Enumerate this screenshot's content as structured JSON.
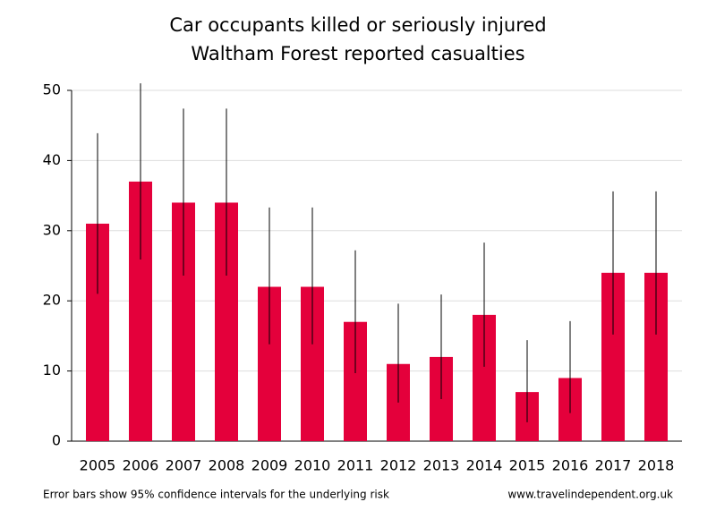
{
  "chart_data": {
    "type": "bar",
    "title": "Car occupants killed or seriously injured",
    "subtitle": "Waltham Forest reported casualties",
    "categories": [
      "2005",
      "2006",
      "2007",
      "2008",
      "2009",
      "2010",
      "2011",
      "2012",
      "2013",
      "2014",
      "2015",
      "2016",
      "2017",
      "2018"
    ],
    "values": [
      31,
      37,
      34,
      34,
      22,
      22,
      17,
      11,
      12,
      18,
      7,
      9,
      24,
      24
    ],
    "ci_low": [
      21.0,
      25.9,
      23.6,
      23.6,
      13.8,
      13.8,
      9.7,
      5.5,
      6.0,
      10.6,
      2.7,
      4.0,
      15.2,
      15.2
    ],
    "ci_high": [
      43.9,
      51.0,
      47.4,
      47.4,
      33.3,
      33.3,
      27.2,
      19.6,
      20.9,
      28.3,
      14.4,
      17.1,
      35.6,
      35.6
    ],
    "color": "#e4003b",
    "ylim": [
      0,
      50
    ],
    "yticks": [
      0,
      10,
      20,
      30,
      40,
      50
    ],
    "grid": true,
    "note": "Error bars show 95% confidence intervals for the underlying risk",
    "source": "www.travelindependent.org.uk"
  }
}
